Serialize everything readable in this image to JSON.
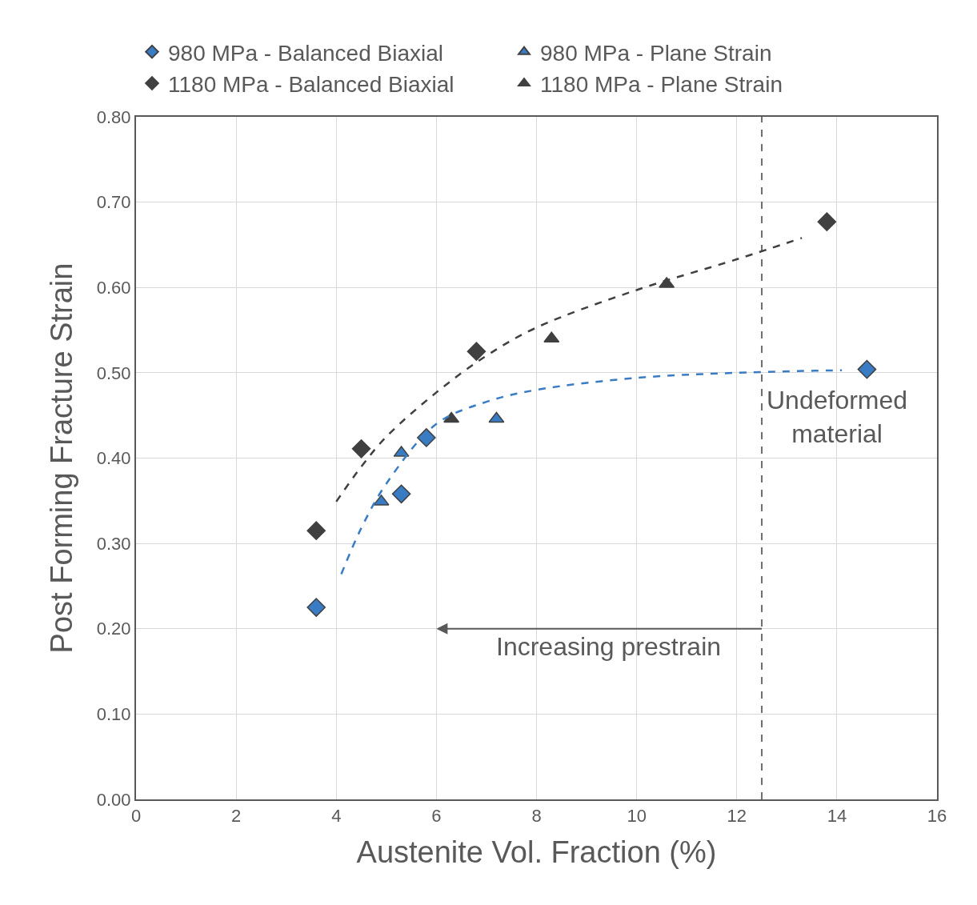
{
  "chart_data": {
    "type": "scatter",
    "xlabel": "Austenite Vol. Fraction (%)",
    "ylabel": "Post Forming Fracture Strain",
    "xlim": [
      0,
      16
    ],
    "xticks": [
      0,
      2,
      4,
      6,
      8,
      10,
      12,
      14,
      16
    ],
    "ylim": [
      0,
      0.8
    ],
    "yticks": [
      {
        "value": 0,
        "label": "0.00"
      },
      {
        "value": 0.1,
        "label": "0.10"
      },
      {
        "value": 0.2,
        "label": "0.20"
      },
      {
        "value": 0.3,
        "label": "0.30"
      },
      {
        "value": 0.4,
        "label": "0.40"
      },
      {
        "value": 0.5,
        "label": "0.50"
      },
      {
        "value": 0.6,
        "label": "0.60"
      },
      {
        "value": 0.7,
        "label": "0.70"
      },
      {
        "value": 0.8,
        "label": "0.80"
      }
    ],
    "grid": true,
    "legend": "top",
    "series": [
      {
        "name": "980 MPa - Balanced Biaxial",
        "color": "#3a7cc4",
        "marker": "diamond",
        "x": [
          3.6,
          5.3,
          5.8,
          14.6
        ],
        "values": [
          0.225,
          0.358,
          0.424,
          0.504
        ]
      },
      {
        "name": "980 MPa - Plane Strain",
        "color": "#3a7cc4",
        "marker": "triangle",
        "x": [
          4.9,
          5.3,
          7.2
        ],
        "values": [
          0.349,
          0.406,
          0.446
        ]
      },
      {
        "name": "1180 MPa - Balanced Biaxial",
        "color": "#404040",
        "marker": "diamond",
        "x": [
          3.6,
          4.5,
          6.8,
          13.8
        ],
        "values": [
          0.315,
          0.411,
          0.525,
          0.677
        ]
      },
      {
        "name": "1180 MPa - Plane Strain",
        "color": "#404040",
        "marker": "triangle",
        "x": [
          6.3,
          8.3,
          10.6
        ],
        "values": [
          0.446,
          0.54,
          0.604
        ]
      },
      {
        "type": "line",
        "color": "#404040",
        "line_style": "dashed",
        "marker": "none",
        "x": [
          4,
          4.5,
          5,
          6,
          7,
          8,
          10,
          12,
          13.3
        ],
        "values": [
          0.349,
          0.39,
          0.425,
          0.477,
          0.52,
          0.553,
          0.597,
          0.633,
          0.658
        ]
      },
      {
        "type": "line",
        "color": "#3a7cc4",
        "line_style": "dashed",
        "marker": "none",
        "x": [
          4.1,
          4.5,
          5,
          6,
          7,
          8,
          10,
          12,
          14.1
        ],
        "values": [
          0.264,
          0.318,
          0.37,
          0.44,
          0.466,
          0.48,
          0.494,
          0.5,
          0.503
        ]
      }
    ],
    "ref_lines": [
      {
        "axis": "x",
        "value": 12.5,
        "label": "Undeformed\nmaterial",
        "color": "#404040",
        "line_style": "dashed"
      }
    ],
    "annotations": [
      "Increasing prestrain"
    ]
  }
}
